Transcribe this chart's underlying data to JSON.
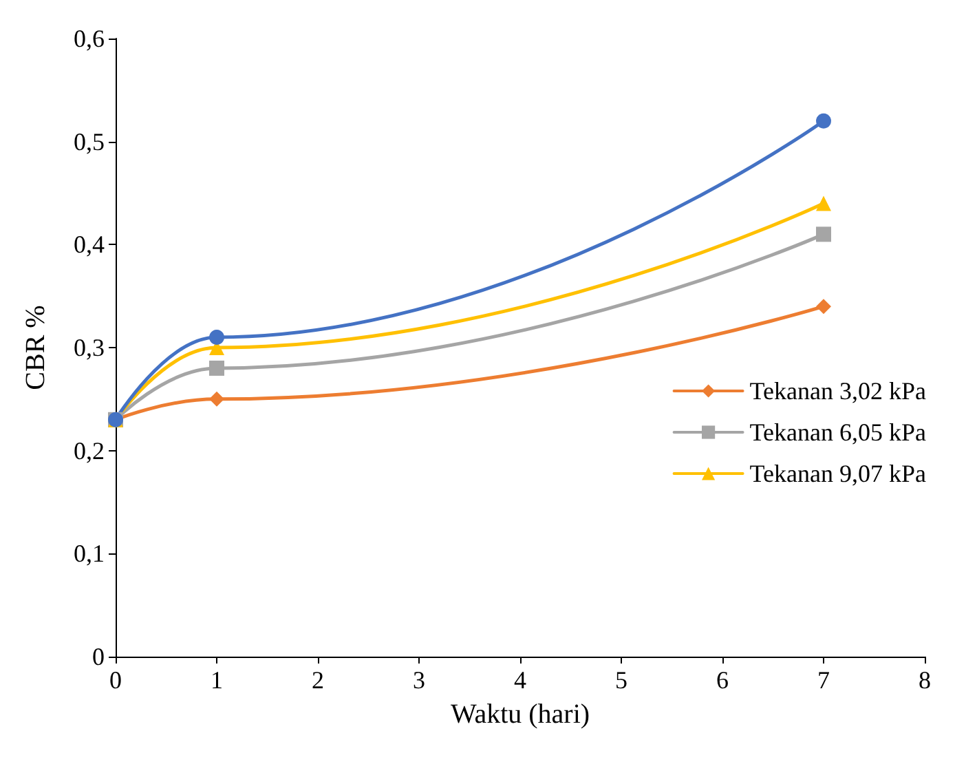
{
  "chart_data": {
    "type": "line",
    "xlabel": "Waktu (hari)",
    "ylabel": "CBR %",
    "x": [
      0,
      1,
      7
    ],
    "series": [
      {
        "name": "Tekanan 3,02 kPa",
        "color": "#ed7d31",
        "marker": "diamond",
        "values": [
          0.23,
          0.25,
          0.34
        ]
      },
      {
        "name": "Tekanan 6,05 kPa",
        "color": "#a5a5a5",
        "marker": "square",
        "values": [
          0.23,
          0.28,
          0.41
        ]
      },
      {
        "name": "Tekanan 9,07 kPa",
        "color": "#ffc000",
        "marker": "triangle",
        "values": [
          0.23,
          0.3,
          0.44
        ]
      },
      {
        "color": "#4472c4",
        "marker": "circle",
        "values": [
          0.23,
          0.31,
          0.52
        ]
      }
    ],
    "xlim": [
      0,
      8
    ],
    "xticks": [
      0,
      1,
      2,
      3,
      4,
      5,
      6,
      7,
      8
    ],
    "ylim": [
      0,
      0.6
    ],
    "yticks": [
      0,
      {
        "value": 0.1,
        "label": "0,1"
      },
      {
        "value": 0.2,
        "label": "0,2"
      },
      {
        "value": 0.3,
        "label": "0,3"
      },
      {
        "value": 0.4,
        "label": "0,4"
      },
      {
        "value": 0.5,
        "label": "0,5"
      },
      {
        "value": 0.6,
        "label": "0,6"
      }
    ],
    "grid": false,
    "legend": "right",
    "line_style": "solid"
  }
}
